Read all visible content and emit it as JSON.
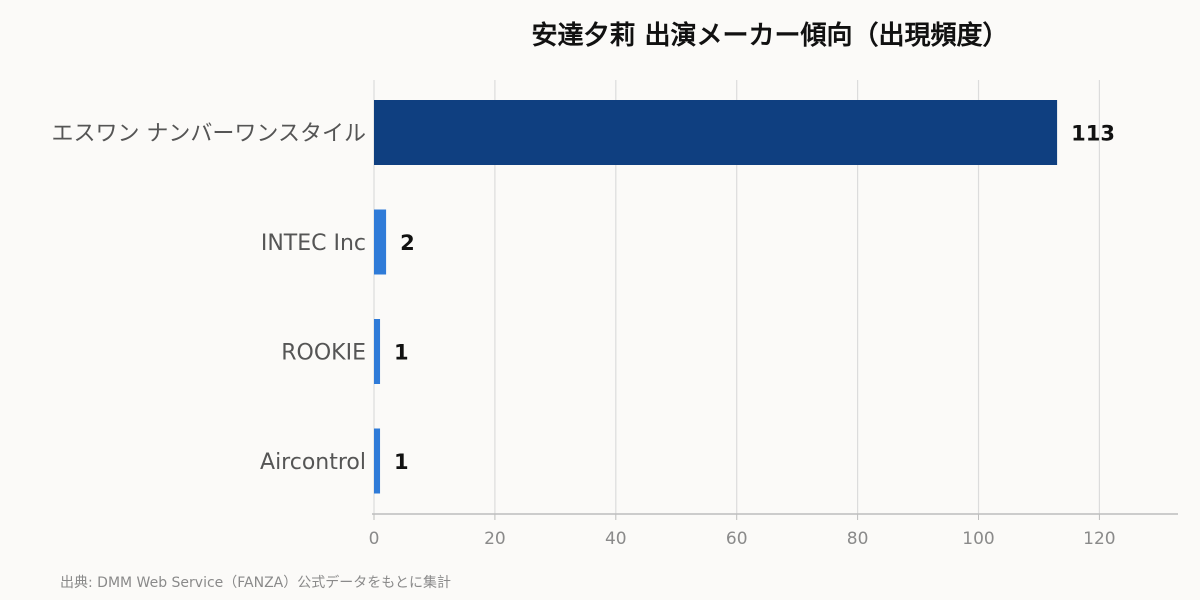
{
  "chart_data": {
    "type": "bar",
    "orientation": "horizontal",
    "title": "安達夕莉 出演メーカー傾向（出現頻度）",
    "categories": [
      "エスワン ナンバーワンスタイル",
      "INTEC Inc",
      "ROOKIE",
      "Aircontrol"
    ],
    "values": [
      113,
      2,
      1,
      1
    ],
    "bar_colors": [
      "#0f3f80",
      "#2f7bd8",
      "#2f7bd8",
      "#2f7bd8"
    ],
    "xlim": [
      0,
      133
    ],
    "xticks": [
      0,
      20,
      40,
      60,
      80,
      100,
      120
    ],
    "xtick_labels": [
      "0",
      "20",
      "40",
      "60",
      "80",
      "100",
      "120"
    ],
    "grid": "vertical",
    "xlabel": "",
    "ylabel": ""
  },
  "source_note": "出典: DMM Web Service（FANZA）公式データをもとに集計",
  "colors": {
    "background": "#fbfaf8",
    "grid": "#dcdcdc",
    "axis": "#bdbdbd"
  }
}
